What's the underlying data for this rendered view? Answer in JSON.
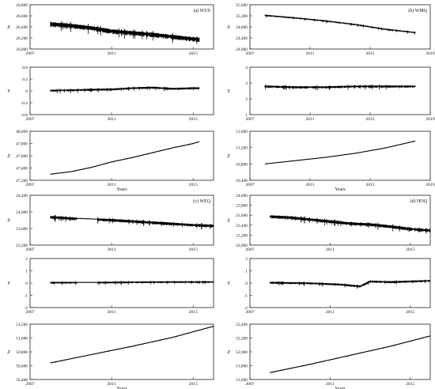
{
  "chart_data": [
    {
      "id": "wus_x",
      "type": "line",
      "panel_label": "(a) WUS",
      "ylabel": "X",
      "xlabel": "",
      "x_ticks": [
        2007,
        2011,
        2015
      ],
      "x_range": [
        2007,
        2016
      ],
      "y_ticks": [
        "26,000",
        "26,200",
        "26,400",
        "26,600",
        "26,800"
      ],
      "ylim": [
        26000,
        26800
      ],
      "series": [
        {
          "x": [
            2008,
            2009,
            2010,
            2011,
            2012,
            2013,
            2014,
            2015,
            2015.3
          ],
          "values": [
            26460,
            26430,
            26390,
            26330,
            26300,
            26270,
            26230,
            26190,
            26180
          ]
        }
      ],
      "noise": 60,
      "data_start": 2008,
      "data_end": 2015.3,
      "gaps": []
    },
    {
      "id": "wus_y",
      "type": "line",
      "panel_label": "",
      "ylabel": "Y",
      "xlabel": "",
      "x_ticks": [
        2007,
        2011,
        2015
      ],
      "x_range": [
        2007,
        2016
      ],
      "y_ticks": [
        "-0.8",
        "-0.4",
        "0",
        "0.4",
        "0.8"
      ],
      "ylim": [
        -0.8,
        0.8
      ],
      "series": [
        {
          "x": [
            2008,
            2009,
            2010,
            2011,
            2012,
            2013,
            2014,
            2015,
            2015.3
          ],
          "values": [
            0.02,
            0.03,
            0.05,
            0.06,
            0.1,
            0.12,
            0.08,
            0.1,
            0.1
          ]
        }
      ],
      "noise": 0.05,
      "data_start": 2008,
      "data_end": 2015.3,
      "gaps": []
    },
    {
      "id": "wus_z",
      "type": "line",
      "panel_label": "",
      "ylabel": "Z",
      "xlabel": "Years",
      "x_ticks": [
        2007,
        2011,
        2015
      ],
      "x_range": [
        2007,
        2016
      ],
      "y_ticks": [
        "47,200",
        "47,400",
        "47,600",
        "47,800",
        "48,000"
      ],
      "ylim": [
        47200,
        48000
      ],
      "series": [
        {
          "x": [
            2008,
            2009,
            2010,
            2011,
            2012,
            2013,
            2014,
            2015,
            2015.3
          ],
          "values": [
            47300,
            47340,
            47410,
            47500,
            47570,
            47650,
            47730,
            47800,
            47830
          ]
        }
      ],
      "noise": 6,
      "data_start": 2008,
      "data_end": 2015.3,
      "gaps": []
    },
    {
      "id": "wmq_x",
      "type": "line",
      "panel_label": "(b) WMQ",
      "ylabel": "X",
      "xlabel": "",
      "x_ticks": [
        2007,
        2011,
        2015,
        2019
      ],
      "x_range": [
        2007,
        2019
      ],
      "y_ticks": [
        "24,000",
        "24,400",
        "24,800",
        "25,200",
        "25,600"
      ],
      "ylim": [
        24000,
        25600
      ],
      "series": [
        {
          "x": [
            2008,
            2010,
            2012,
            2014,
            2016,
            2018
          ],
          "values": [
            25220,
            25130,
            25020,
            24890,
            24720,
            24600
          ]
        }
      ],
      "noise": 35,
      "data_start": 2008,
      "data_end": 2018,
      "gaps": []
    },
    {
      "id": "wmq_y",
      "type": "line",
      "panel_label": "",
      "ylabel": "Y",
      "xlabel": "",
      "x_ticks": [
        2007,
        2011,
        2015,
        2019
      ],
      "x_range": [
        2007,
        2019
      ],
      "y_ticks": [
        "1",
        "2",
        "3",
        "4"
      ],
      "ylim": [
        1,
        4
      ],
      "series": [
        {
          "x": [
            2008,
            2010,
            2012,
            2014,
            2016,
            2018
          ],
          "values": [
            2.8,
            2.75,
            2.75,
            2.8,
            2.8,
            2.8
          ]
        }
      ],
      "noise": 0.1,
      "data_start": 2008,
      "data_end": 2018,
      "gaps": []
    },
    {
      "id": "wmq_z",
      "type": "line",
      "panel_label": "",
      "ylabel": "Z",
      "xlabel": "Years",
      "x_ticks": [
        2007,
        2011,
        2015,
        2019
      ],
      "x_range": [
        2007,
        2019
      ],
      "y_ticks": [
        "50,400",
        "50,800",
        "51,200",
        "51,600"
      ],
      "ylim": [
        50400,
        51600
      ],
      "series": [
        {
          "x": [
            2008,
            2010,
            2012,
            2014,
            2016,
            2018
          ],
          "values": [
            50800,
            50880,
            50960,
            51060,
            51190,
            51360
          ]
        }
      ],
      "noise": 4,
      "data_start": 2008,
      "data_end": 2018,
      "gaps": []
    },
    {
      "id": "weq_x",
      "type": "line",
      "panel_label": "(c) WEQ",
      "ylabel": "X",
      "xlabel": "",
      "x_ticks": [
        2007,
        2011,
        2015
      ],
      "x_range": [
        2007,
        2016
      ],
      "y_ticks": [
        "23,200",
        "23,600",
        "24,000",
        "24,400"
      ],
      "ylim": [
        23200,
        24400
      ],
      "series": [
        {
          "x": [
            2008,
            2009,
            2010,
            2011,
            2012,
            2013,
            2014,
            2015,
            2016
          ],
          "values": [
            23880,
            23850,
            23830,
            23810,
            23780,
            23750,
            23720,
            23690,
            23670
          ]
        }
      ],
      "noise": 50,
      "data_start": 2008,
      "data_end": 2016,
      "gaps": [
        [
          2009.3,
          2010.3
        ]
      ]
    },
    {
      "id": "weq_y",
      "type": "line",
      "panel_label": "",
      "ylabel": "Y",
      "xlabel": "",
      "x_ticks": [
        2007,
        2011,
        2015
      ],
      "x_range": [
        2007,
        2016
      ],
      "y_ticks": [
        "-2",
        "-1",
        "0",
        "1",
        "2"
      ],
      "ylim": [
        -2,
        2
      ],
      "series": [
        {
          "x": [
            2008,
            2010,
            2012,
            2014,
            2016
          ],
          "values": [
            0.05,
            0.05,
            0.08,
            0.1,
            0.1
          ]
        }
      ],
      "noise": 0.1,
      "data_start": 2008,
      "data_end": 2016,
      "gaps": [
        [
          2009.3,
          2010.3
        ]
      ]
    },
    {
      "id": "weq_z",
      "type": "line",
      "panel_label": "",
      "ylabel": "Z",
      "xlabel": "Years",
      "x_ticks": [
        2007,
        2011,
        2015
      ],
      "x_range": [
        2007,
        2016
      ],
      "y_ticks": [
        "50,400",
        "50,600",
        "50,800",
        "51,000",
        "51,200"
      ],
      "ylim": [
        50400,
        51200
      ],
      "series": [
        {
          "x": [
            2008,
            2010,
            2012,
            2014,
            2016
          ],
          "values": [
            50640,
            50760,
            50880,
            51010,
            51170
          ]
        }
      ],
      "noise": 6,
      "data_start": 2008,
      "data_end": 2016,
      "gaps": [
        [
          2009.3,
          2010.3
        ]
      ]
    },
    {
      "id": "hoq_x",
      "type": "line",
      "panel_label": "(d) HOQ",
      "ylabel": "X",
      "xlabel": "",
      "x_ticks": [
        2007,
        2011,
        2015
      ],
      "x_range": [
        2007,
        2016
      ],
      "y_ticks": [
        "23,000",
        "23,200",
        "23,400",
        "23,600",
        "23,800",
        "24,000"
      ],
      "ylim": [
        23000,
        24000
      ],
      "series": [
        {
          "x": [
            2008,
            2009,
            2010,
            2011,
            2012,
            2013,
            2014,
            2015,
            2016
          ],
          "values": [
            23580,
            23560,
            23520,
            23480,
            23440,
            23420,
            23380,
            23330,
            23300
          ]
        }
      ],
      "noise": 45,
      "data_start": 2008,
      "data_end": 2016,
      "gaps": []
    },
    {
      "id": "hoq_y",
      "type": "line",
      "panel_label": "",
      "ylabel": "Y",
      "xlabel": "",
      "x_ticks": [
        2007,
        2011,
        2015
      ],
      "x_range": [
        2007,
        2016
      ],
      "y_ticks": [
        "-2",
        "-1",
        "0",
        "1",
        "2"
      ],
      "ylim": [
        -2,
        2
      ],
      "series": [
        {
          "x": [
            2008,
            2010,
            2011.5,
            2012.5,
            2013,
            2014,
            2016
          ],
          "values": [
            0.05,
            0,
            -0.1,
            -0.25,
            0.15,
            0.1,
            0.2
          ]
        }
      ],
      "noise": 0.12,
      "data_start": 2008,
      "data_end": 2016,
      "gaps": []
    },
    {
      "id": "hoq_z",
      "type": "line",
      "panel_label": "",
      "ylabel": "Z",
      "xlabel": "Years",
      "x_ticks": [
        2007,
        2011,
        2015
      ],
      "x_range": [
        2007,
        2016
      ],
      "y_ticks": [
        "51,600",
        "51,800",
        "52,000",
        "52,200",
        "52,400"
      ],
      "ylim": [
        51600,
        52400
      ],
      "series": [
        {
          "x": [
            2008,
            2010,
            2012,
            2014,
            2016
          ],
          "values": [
            51700,
            51820,
            51950,
            52080,
            52230
          ]
        }
      ],
      "noise": 6,
      "data_start": 2008,
      "data_end": 2016,
      "gaps": []
    }
  ]
}
